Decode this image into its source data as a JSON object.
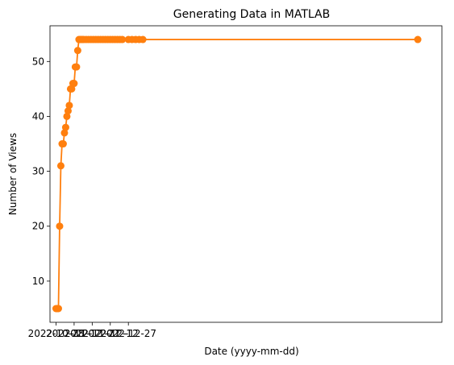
{
  "chart_data": {
    "type": "line",
    "title": "Generating Data in MATLAB",
    "xlabel": "Date (yyyy-mm-dd)",
    "ylabel": "Number of Views",
    "xtick_labels": [
      "2022-10-28",
      "2022-11-12",
      "2022-11-27",
      "2022-12-12",
      "2022-12-27"
    ],
    "xtick_values": [
      0,
      15,
      30,
      45,
      60
    ],
    "xlim": [
      -5,
      320
    ],
    "ylim": [
      2.5,
      56.5
    ],
    "yticks": [
      10,
      20,
      30,
      40,
      50
    ],
    "grid": false,
    "legend": false,
    "series": [
      {
        "color": "#ff7f0e",
        "marker": "circle",
        "x": [
          0,
          1,
          2,
          3,
          4,
          5,
          6,
          7,
          8,
          9,
          10,
          11,
          12,
          13,
          14,
          15,
          16,
          17,
          18,
          19,
          20,
          21,
          22,
          23,
          25,
          27,
          29,
          31,
          33,
          35,
          37,
          39,
          41,
          43,
          45,
          47,
          49,
          51,
          53,
          55,
          60,
          63,
          66,
          69,
          72,
          300
        ],
        "y": [
          5,
          5,
          5,
          20,
          31,
          35,
          35,
          37,
          38,
          40,
          41,
          42,
          45,
          45,
          46,
          46,
          49,
          49,
          52,
          54,
          54,
          54,
          54,
          54,
          54,
          54,
          54,
          54,
          54,
          54,
          54,
          54,
          54,
          54,
          54,
          54,
          54,
          54,
          54,
          54,
          54,
          54,
          54,
          54,
          54,
          54
        ]
      }
    ]
  }
}
